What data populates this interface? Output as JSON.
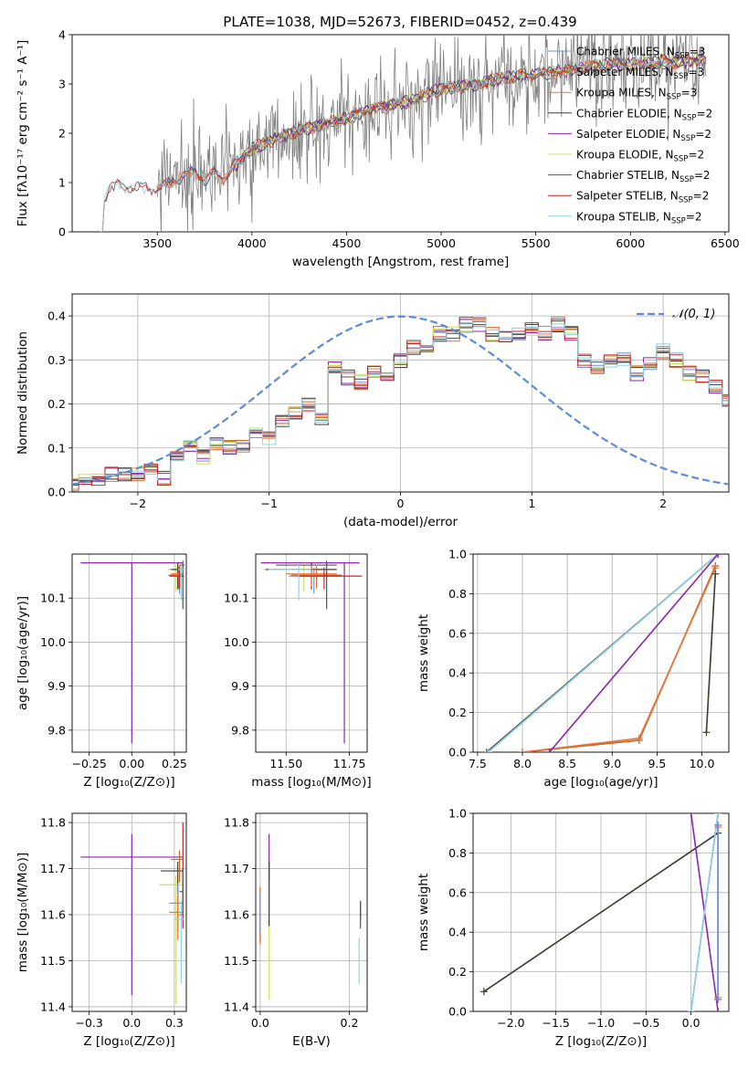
{
  "title": "PLATE=1038, MJD=52673, FIBERID=0452, z=0.439",
  "colors": {
    "Chabrier MILES": "#6f8fe0",
    "Salpeter MILES": "#d2691e",
    "Kroupa MILES": "#e8743b",
    "Chabrier ELODIE": "#3d3d3d",
    "Salpeter ELODIE": "#8e24aa",
    "Kroupa ELODIE": "#c8e05a",
    "Chabrier STELIB": "#555555",
    "Salpeter STELIB": "#c62828",
    "Kroupa STELIB": "#8ed1e6",
    "data": "#808080",
    "normal": "#5b8bd9"
  },
  "chart_data": [
    {
      "type": "line",
      "panel": "spectrum",
      "xlabel": "wavelength [Angstrom, rest frame]",
      "ylabel": "Flux [fλ10⁻¹⁷ erg cm⁻² s⁻¹ A⁻¹]",
      "xlim": [
        3050,
        6520
      ],
      "ylim": [
        0,
        4
      ],
      "xticks": [
        3500,
        4000,
        4500,
        5000,
        5500,
        6000,
        6500
      ],
      "yticks": [
        0,
        1,
        2,
        3,
        4
      ],
      "legend_position": "top-right",
      "legend": [
        {
          "name": "Chabrier MILES",
          "sub": "SSP",
          "val": "=3"
        },
        {
          "name": "Salpeter MILES",
          "sub": "SSP",
          "val": "=3"
        },
        {
          "name": "Kroupa MILES",
          "sub": "SSP",
          "val": "=3"
        },
        {
          "name": "Chabrier ELODIE",
          "sub": "SSP",
          "val": "=2"
        },
        {
          "name": "Salpeter ELODIE",
          "sub": "SSP",
          "val": "=2"
        },
        {
          "name": "Kroupa ELODIE",
          "sub": "SSP",
          "val": "=2"
        },
        {
          "name": "Chabrier STELIB",
          "sub": "SSP",
          "val": "=2"
        },
        {
          "name": "Salpeter STELIB",
          "sub": "SSP",
          "val": "=2"
        },
        {
          "name": "Kroupa STELIB",
          "sub": "SSP",
          "val": "=2"
        }
      ],
      "continuum": {
        "x": [
          3200,
          3210,
          3250,
          3300,
          3350,
          3400,
          3450,
          3500,
          3550,
          3600,
          3650,
          3700,
          3750,
          3800,
          3850,
          3900,
          3950,
          4000,
          4100,
          4200,
          4300,
          4400,
          4500,
          4600,
          4700,
          4800,
          4900,
          5000,
          5100,
          5200,
          5300,
          5400,
          5500,
          5600,
          5700,
          5800,
          5900,
          6000,
          6100,
          6200,
          6300,
          6400
        ],
        "y": [
          0.0,
          0.6,
          0.9,
          0.95,
          0.93,
          0.9,
          0.88,
          0.87,
          0.95,
          1.05,
          1.15,
          1.25,
          1.05,
          1.2,
          1.1,
          1.3,
          1.5,
          1.7,
          1.85,
          2.0,
          2.1,
          2.2,
          2.3,
          2.45,
          2.55,
          2.6,
          2.75,
          2.9,
          2.95,
          3.0,
          3.1,
          3.15,
          3.2,
          3.25,
          3.3,
          3.35,
          3.4,
          3.4,
          3.42,
          3.45,
          3.45,
          3.5
        ]
      },
      "data_range": [
        3500,
        6400
      ]
    },
    {
      "type": "histogram",
      "panel": "residuals",
      "xlabel": "(data-model)/error",
      "ylabel": "Normed distribution",
      "xlim": [
        -2.5,
        2.5
      ],
      "ylim": [
        0,
        0.45
      ],
      "xticks": [
        -2,
        -1,
        0,
        1,
        2
      ],
      "yticks": [
        0.0,
        0.1,
        0.2,
        0.3,
        0.4
      ],
      "bin_width": 0.1,
      "reference_curve": "N(0,1)",
      "legend_label": "𝒩(0, 1)",
      "legend_position": "top-right",
      "histogram_shape": [
        0.02,
        0.03,
        0.03,
        0.04,
        0.04,
        0.04,
        0.05,
        0.03,
        0.08,
        0.1,
        0.08,
        0.11,
        0.1,
        0.1,
        0.13,
        0.12,
        0.16,
        0.18,
        0.2,
        0.17,
        0.28,
        0.26,
        0.25,
        0.27,
        0.26,
        0.3,
        0.33,
        0.33,
        0.36,
        0.36,
        0.38,
        0.38,
        0.36,
        0.35,
        0.36,
        0.37,
        0.36,
        0.38,
        0.36,
        0.3,
        0.28,
        0.3,
        0.3,
        0.27,
        0.29,
        0.32,
        0.3,
        0.27,
        0.26,
        0.24,
        0.21,
        0.22,
        0.2,
        0.2,
        0.18,
        0.13,
        0.11,
        0.12,
        0.12,
        0.1,
        0.09,
        0.08,
        0.08,
        0.06,
        0.05,
        0.07,
        0.06,
        0.05,
        0.04,
        0.05,
        0.06,
        0.04,
        0.05,
        0.03,
        0.03
      ]
    },
    {
      "type": "errorbar",
      "panel": "age-vs-Z",
      "xlabel": "Z [log₁₀(Z/Z⊙)]",
      "ylabel": "age  [log₁₀(age/yr)]",
      "xlim": [
        -0.35,
        0.32
      ],
      "ylim": [
        9.75,
        10.2
      ],
      "xticks": [
        -0.25,
        0.0,
        0.25
      ],
      "yticks": [
        9.8,
        9.9,
        10.0,
        10.1
      ],
      "points": [
        {
          "model": "Salpeter ELODIE",
          "x": 0.0,
          "xerr": [
            0.3,
            0.3
          ],
          "y": 10.18,
          "yerr": [
            0.41,
            0.0
          ]
        },
        {
          "model": "Kroupa ELODIE",
          "x": 0.26,
          "xerr": [
            0.05,
            0.05
          ],
          "y": 10.165,
          "yerr": [
            0.05,
            0.015
          ]
        },
        {
          "model": "Chabrier ELODIE",
          "x": 0.27,
          "xerr": [
            0.04,
            0.04
          ],
          "y": 10.165,
          "yerr": [
            0.045,
            0.015
          ]
        },
        {
          "model": "Chabrier MILES",
          "x": 0.28,
          "xerr": [
            0.05,
            0.03
          ],
          "y": 10.15,
          "yerr": [
            0.04,
            0.02
          ]
        },
        {
          "model": "Salpeter MILES",
          "x": 0.275,
          "xerr": [
            0.06,
            0.03
          ],
          "y": 10.152,
          "yerr": [
            0.03,
            0.02
          ]
        },
        {
          "model": "Kroupa MILES",
          "x": 0.28,
          "xerr": [
            0.05,
            0.02
          ],
          "y": 10.155,
          "yerr": [
            0.03,
            0.02
          ]
        },
        {
          "model": "Salpeter STELIB",
          "x": 0.28,
          "xerr": [
            0.06,
            0.02
          ],
          "y": 10.15,
          "yerr": [
            0.03,
            0.02
          ]
        },
        {
          "model": "Chabrier STELIB",
          "x": 0.3,
          "xerr": [
            0.02,
            0.01
          ],
          "y": 10.175,
          "yerr": [
            0.1,
            0.01
          ]
        },
        {
          "model": "Kroupa STELIB",
          "x": 0.29,
          "xerr": [
            0.02,
            0.02
          ],
          "y": 10.165,
          "yerr": [
            0.07,
            0.01
          ]
        }
      ]
    },
    {
      "type": "errorbar",
      "panel": "age-vs-mass",
      "xlabel": "mass [log₁₀(M/M⊙)]",
      "ylabel": "",
      "xlim": [
        11.38,
        11.82
      ],
      "ylim": [
        9.75,
        10.2
      ],
      "xticks": [
        11.5,
        11.75
      ],
      "yticks": [
        9.8,
        9.9,
        10.0,
        10.1
      ],
      "points": [
        {
          "model": "Salpeter ELODIE",
          "x": 11.73,
          "xerr": [
            0.33,
            0.06
          ],
          "y": 10.18,
          "yerr": [
            0.41,
            0.0
          ]
        },
        {
          "model": "Kroupa ELODIE",
          "x": 11.57,
          "xerr": [
            0.16,
            0.12
          ],
          "y": 10.165,
          "yerr": [
            0.05,
            0.015
          ]
        },
        {
          "model": "Chabrier ELODIE",
          "x": 11.6,
          "xerr": [
            0.18,
            0.1
          ],
          "y": 10.165,
          "yerr": [
            0.045,
            0.015
          ]
        },
        {
          "model": "Chabrier MILES",
          "x": 11.61,
          "xerr": [
            0.1,
            0.1
          ],
          "y": 10.15,
          "yerr": [
            0.04,
            0.02
          ]
        },
        {
          "model": "Salpeter MILES",
          "x": 11.62,
          "xerr": [
            0.1,
            0.1
          ],
          "y": 10.152,
          "yerr": [
            0.03,
            0.02
          ]
        },
        {
          "model": "Kroupa MILES",
          "x": 11.6,
          "xerr": [
            0.1,
            0.1
          ],
          "y": 10.155,
          "yerr": [
            0.03,
            0.02
          ]
        },
        {
          "model": "Salpeter STELIB",
          "x": 11.65,
          "xerr": [
            0.1,
            0.15
          ],
          "y": 10.15,
          "yerr": [
            0.03,
            0.02
          ]
        },
        {
          "model": "Chabrier STELIB",
          "x": 11.66,
          "xerr": [
            0.2,
            0.04
          ],
          "y": 10.175,
          "yerr": [
            0.1,
            0.01
          ]
        },
        {
          "model": "Kroupa STELIB",
          "x": 11.55,
          "xerr": [
            0.12,
            0.05
          ],
          "y": 10.165,
          "yerr": [
            0.07,
            0.01
          ]
        }
      ]
    },
    {
      "type": "line",
      "panel": "mass-weight-vs-age",
      "xlabel": "age  [log₁₀(age/yr)]",
      "ylabel": "mass weight",
      "xlim": [
        7.45,
        10.3
      ],
      "ylim": [
        0.0,
        1.0
      ],
      "xticks": [
        7.5,
        8.0,
        8.5,
        9.0,
        9.5,
        10.0
      ],
      "yticks": [
        0.0,
        0.2,
        0.4,
        0.6,
        0.8,
        1.0
      ],
      "series": [
        {
          "model": "Chabrier STELIB",
          "x": [
            7.6,
            10.18
          ],
          "y": [
            0.0,
            1.0
          ]
        },
        {
          "model": "Kroupa STELIB",
          "x": [
            7.62,
            10.18
          ],
          "y": [
            0.0,
            1.0
          ]
        },
        {
          "model": "Chabrier MILES",
          "x": [
            8.0,
            9.3,
            10.15
          ],
          "y": [
            0.0,
            0.06,
            0.94
          ]
        },
        {
          "model": "Salpeter MILES",
          "x": [
            8.0,
            9.3,
            10.15
          ],
          "y": [
            0.0,
            0.06,
            0.94
          ]
        },
        {
          "model": "Kroupa MILES",
          "x": [
            8.0,
            9.3,
            10.15
          ],
          "y": [
            0.0,
            0.07,
            0.93
          ]
        },
        {
          "model": "Salpeter ELODIE",
          "x": [
            8.3,
            10.18
          ],
          "y": [
            0.0,
            1.0
          ]
        },
        {
          "model": "Kroupa ELODIE",
          "x": [
            10.05,
            10.15
          ],
          "y": [
            0.1,
            0.9
          ]
        },
        {
          "model": "Chabrier ELODIE",
          "x": [
            10.05,
            10.15
          ],
          "y": [
            0.1,
            0.9
          ]
        }
      ]
    },
    {
      "type": "errorbar",
      "panel": "mass-vs-Z",
      "xlabel": "Z [log₁₀(Z/Z⊙)]",
      "ylabel": "mass [log₁₀(M/M⊙)]",
      "xlim": [
        -0.35,
        0.32
      ],
      "ylim": [
        11.39,
        11.82
      ],
      "xticks": [
        -0.25,
        0.0,
        0.25
      ],
      "yticks": [
        11.4,
        11.5,
        11.6,
        11.7,
        11.8
      ],
      "points": [
        {
          "model": "Salpeter ELODIE",
          "x": 0.0,
          "xerr": [
            0.3,
            0.3
          ],
          "y": 11.725,
          "yerr": [
            0.3,
            0.05
          ]
        },
        {
          "model": "Chabrier ELODIE",
          "x": 0.27,
          "xerr": [
            0.1,
            0.03
          ],
          "y": 11.695,
          "yerr": [
            0.12,
            0.02
          ]
        },
        {
          "model": "Kroupa ELODIE",
          "x": 0.26,
          "xerr": [
            0.1,
            0.04
          ],
          "y": 11.665,
          "yerr": [
            0.26,
            0.02
          ]
        },
        {
          "model": "Salpeter MILES",
          "x": 0.28,
          "xerr": [
            0.05,
            0.02
          ],
          "y": 11.72,
          "yerr": [
            0.05,
            0.02
          ]
        },
        {
          "model": "Chabrier MILES",
          "x": 0.27,
          "xerr": [
            0.05,
            0.03
          ],
          "y": 11.625,
          "yerr": [
            0.06,
            0.04
          ]
        },
        {
          "model": "Kroupa MILES",
          "x": 0.27,
          "xerr": [
            0.05,
            0.03
          ],
          "y": 11.605,
          "yerr": [
            0.06,
            0.04
          ]
        },
        {
          "model": "Salpeter STELIB",
          "x": 0.3,
          "xerr": [
            0.02,
            0.0
          ],
          "y": 11.6,
          "yerr": [
            0.03,
            0.2
          ]
        },
        {
          "model": "Chabrier STELIB",
          "x": 0.3,
          "xerr": [
            0.02,
            0.0
          ],
          "y": 11.65,
          "yerr": [
            0.05,
            0.05
          ]
        },
        {
          "model": "Kroupa STELIB",
          "x": 0.29,
          "xerr": [
            0.04,
            0.02
          ],
          "y": 11.59,
          "yerr": [
            0.14,
            0.04
          ]
        }
      ]
    },
    {
      "type": "errorbar",
      "panel": "mass-vs-EBV",
      "xlabel": "E(B-V)",
      "ylabel": "",
      "xlim": [
        -0.01,
        0.24
      ],
      "ylim": [
        11.39,
        11.82
      ],
      "xticks": [
        0.0,
        0.2
      ],
      "yticks": [
        11.4,
        11.5,
        11.6,
        11.7,
        11.8
      ],
      "points": [
        {
          "model": "Salpeter ELODIE",
          "x": 0.02,
          "xerr": [
            0.0,
            0.0
          ],
          "y": 11.725,
          "yerr": [
            0.05,
            0.05
          ]
        },
        {
          "model": "Kroupa ELODIE",
          "x": 0.02,
          "xerr": [
            0.0,
            0.0
          ],
          "y": 11.665,
          "yerr": [
            0.25,
            0.02
          ]
        },
        {
          "model": "Chabrier ELODIE",
          "x": 0.02,
          "xerr": [
            0.0,
            0.0
          ],
          "y": 11.695,
          "yerr": [
            0.12,
            0.02
          ]
        },
        {
          "model": "Kroupa MILES",
          "x": 0.0,
          "xerr": [
            0.0,
            0.0
          ],
          "y": 11.605,
          "yerr": [
            0.07,
            0.04
          ]
        },
        {
          "model": "Salpeter MILES",
          "x": 0.0,
          "xerr": [
            0.0,
            0.0
          ],
          "y": 11.62,
          "yerr": [
            0.08,
            0.04
          ]
        },
        {
          "model": "Chabrier MILES",
          "x": 0.0,
          "xerr": [
            0.0,
            0.0
          ],
          "y": 11.62,
          "yerr": [
            0.06,
            0.03
          ]
        },
        {
          "model": "Salpeter STELIB",
          "x": 0.225,
          "xerr": [
            0.0,
            0.0
          ],
          "y": 11.61,
          "yerr": [
            0.02,
            0.02
          ]
        },
        {
          "model": "Chabrier STELIB",
          "x": 0.225,
          "xerr": [
            0.0,
            0.0
          ],
          "y": 11.6,
          "yerr": [
            0.03,
            0.03
          ]
        },
        {
          "model": "Kroupa STELIB",
          "x": 0.222,
          "xerr": [
            0.0,
            0.0
          ],
          "y": 11.5,
          "yerr": [
            0.05,
            0.05
          ]
        }
      ]
    },
    {
      "type": "line",
      "panel": "mass-weight-vs-Z",
      "xlabel": "Z [log₁₀(Z/Z⊙)]",
      "ylabel": "mass weight",
      "xlim": [
        -2.42,
        0.42
      ],
      "ylim": [
        0.0,
        1.0
      ],
      "xticks": [
        -2.0,
        -1.5,
        -1.0,
        -0.5,
        0.0
      ],
      "yticks": [
        0.0,
        0.2,
        0.4,
        0.6,
        0.8,
        1.0
      ],
      "series": [
        {
          "model": "Kroupa ELODIE",
          "x": [
            -2.3,
            0.3
          ],
          "y": [
            0.1,
            0.9
          ]
        },
        {
          "model": "Chabrier ELODIE",
          "x": [
            -2.3,
            0.3
          ],
          "y": [
            0.1,
            0.9
          ]
        },
        {
          "model": "Salpeter ELODIE",
          "x": [
            0.0,
            0.3
          ],
          "y": [
            1.0,
            0.0
          ]
        },
        {
          "model": "Chabrier STELIB",
          "x": [
            0.0,
            0.3
          ],
          "y": [
            0.0,
            1.0
          ]
        },
        {
          "model": "Kroupa STELIB",
          "x": [
            0.0,
            0.3
          ],
          "y": [
            0.0,
            1.0
          ]
        },
        {
          "model": "Salpeter MILES",
          "x": [
            0.3,
            0.3
          ],
          "y": [
            0.06,
            0.94
          ]
        },
        {
          "model": "Kroupa MILES",
          "x": [
            0.3,
            0.3
          ],
          "y": [
            0.07,
            0.93
          ]
        },
        {
          "model": "Chabrier MILES",
          "x": [
            0.3,
            0.3
          ],
          "y": [
            0.06,
            0.94
          ]
        }
      ]
    }
  ]
}
